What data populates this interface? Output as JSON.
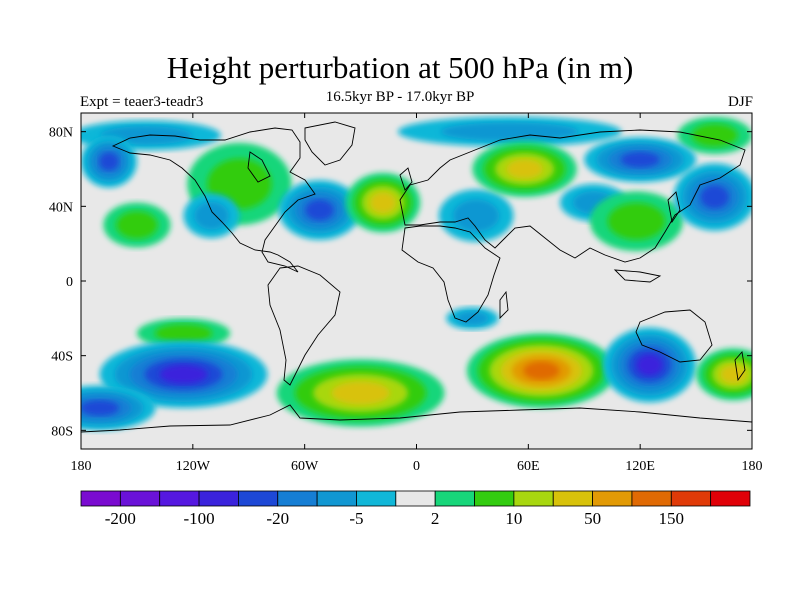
{
  "title": "Height perturbation at 500 hPa (in m)",
  "subtitle": "16.5kyr BP - 17.0kyr BP",
  "left_label": "Expt = teaer3-teadr3",
  "right_label": "DJF",
  "map": {
    "lat_ticks": [
      "80N",
      "40N",
      "0",
      "40S",
      "80S"
    ],
    "lon_ticks": [
      "180",
      "120W",
      "60W",
      "0",
      "60E",
      "120E",
      "180"
    ],
    "lat_values": [
      80,
      40,
      0,
      -40,
      -80
    ],
    "lon_values": [
      -180,
      -120,
      -60,
      0,
      60,
      120,
      180
    ],
    "background_color": "#e8e8e8",
    "fields": [
      {
        "lon": -145,
        "lat": 78,
        "rx": 40,
        "ry": 8,
        "value": -5
      },
      {
        "lon": -40,
        "lat": 80,
        "rx": 30,
        "ry": 8,
        "value": 2
      },
      {
        "lon": 50,
        "lat": 80,
        "rx": 60,
        "ry": 8,
        "value": -5
      },
      {
        "lon": 160,
        "lat": 78,
        "rx": 20,
        "ry": 10,
        "value": 10
      },
      {
        "lon": -165,
        "lat": 64,
        "rx": 15,
        "ry": 14,
        "value": -20
      },
      {
        "lon": -95,
        "lat": 52,
        "rx": 28,
        "ry": 22,
        "value": 10
      },
      {
        "lon": -52,
        "lat": 38,
        "rx": 22,
        "ry": 16,
        "value": -20
      },
      {
        "lon": -150,
        "lat": 30,
        "rx": 18,
        "ry": 12,
        "value": 10
      },
      {
        "lon": -110,
        "lat": 35,
        "rx": 15,
        "ry": 12,
        "value": -5
      },
      {
        "lon": -18,
        "lat": 42,
        "rx": 20,
        "ry": 16,
        "value": 50
      },
      {
        "lon": 32,
        "lat": 35,
        "rx": 20,
        "ry": 14,
        "value": -5
      },
      {
        "lon": 58,
        "lat": 60,
        "rx": 28,
        "ry": 15,
        "value": 50
      },
      {
        "lon": 95,
        "lat": 42,
        "rx": 18,
        "ry": 10,
        "value": -5
      },
      {
        "lon": 118,
        "lat": 32,
        "rx": 25,
        "ry": 16,
        "value": 10
      },
      {
        "lon": 160,
        "lat": 45,
        "rx": 22,
        "ry": 18,
        "value": -20
      },
      {
        "lon": 120,
        "lat": 65,
        "rx": 30,
        "ry": 12,
        "value": -20
      },
      {
        "lon": -125,
        "lat": -28,
        "rx": 25,
        "ry": 8,
        "value": 10
      },
      {
        "lon": -125,
        "lat": -50,
        "rx": 45,
        "ry": 18,
        "value": -50
      },
      {
        "lon": -30,
        "lat": -60,
        "rx": 45,
        "ry": 18,
        "value": 50
      },
      {
        "lon": 67,
        "lat": -48,
        "rx": 40,
        "ry": 20,
        "value": 150
      },
      {
        "lon": 125,
        "lat": -45,
        "rx": 25,
        "ry": 20,
        "value": -50
      },
      {
        "lon": 170,
        "lat": -50,
        "rx": 20,
        "ry": 14,
        "value": 50
      },
      {
        "lon": -170,
        "lat": -68,
        "rx": 30,
        "ry": 12,
        "value": -20
      },
      {
        "lon": 30,
        "lat": -20,
        "rx": 14,
        "ry": 6,
        "value": -5
      }
    ]
  },
  "colorbar": {
    "colors": [
      "#7a0bd0",
      "#6a12d8",
      "#5517e0",
      "#3b23dc",
      "#1d48d6",
      "#167ed4",
      "#1197d2",
      "#11b7d8",
      "#e8e8e8",
      "#17d67a",
      "#33cc10",
      "#a8d70f",
      "#d8c20a",
      "#e29a05",
      "#e06a04",
      "#e03a08",
      "#e00008"
    ],
    "labels": [
      "-200",
      "-100",
      "-20",
      "-5",
      "2",
      "10",
      "50",
      "150"
    ],
    "label_box_index": [
      1,
      3,
      5,
      7,
      9,
      11,
      13,
      15
    ],
    "label_values": [
      -200,
      -100,
      -20,
      -5,
      2,
      10,
      50,
      150
    ]
  }
}
